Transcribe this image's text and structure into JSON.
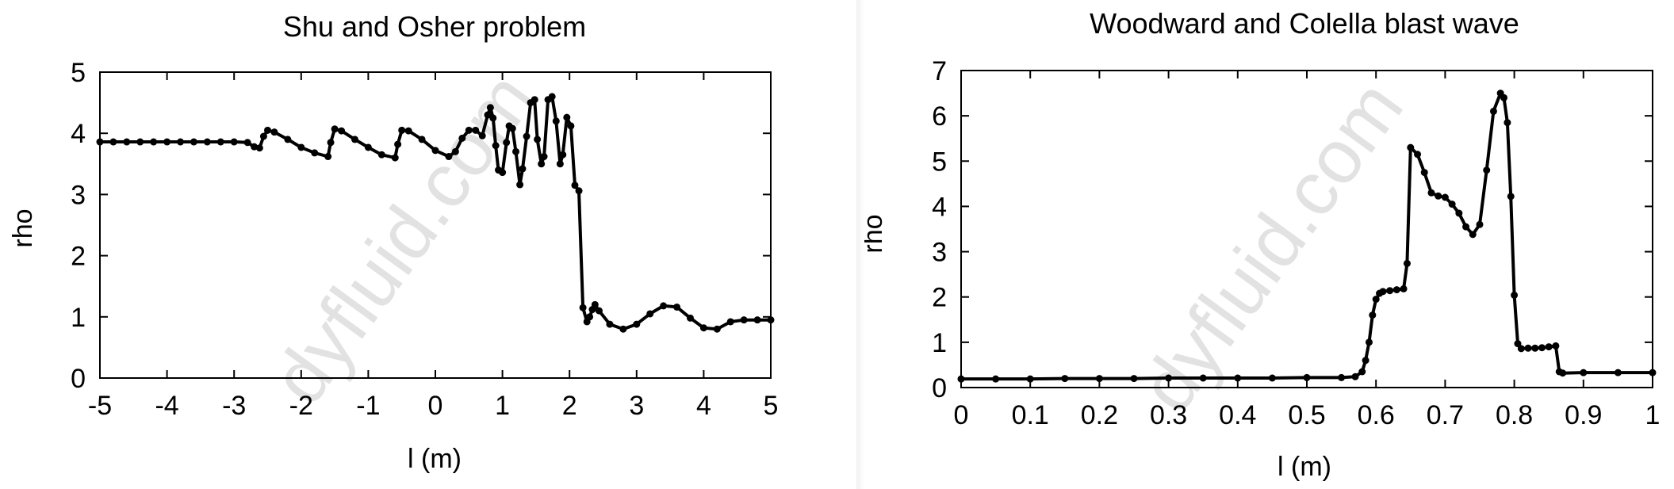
{
  "watermark": "dyfluid.com",
  "chart_data": [
    {
      "type": "line",
      "title": "Shu and Osher problem",
      "xlabel": "l (m)",
      "ylabel": "rho",
      "xlim": [
        -5,
        5
      ],
      "ylim": [
        0,
        5
      ],
      "xticks": [
        "-5",
        "-4",
        "-3",
        "-2",
        "-1",
        "0",
        "1",
        "2",
        "3",
        "4",
        "5"
      ],
      "yticks": [
        "0",
        "1",
        "2",
        "3",
        "4",
        "5"
      ],
      "markers": true,
      "series": [
        {
          "x": [
            -5.0,
            -4.8,
            -4.6,
            -4.4,
            -4.2,
            -4.0,
            -3.8,
            -3.6,
            -3.4,
            -3.2,
            -3.0,
            -2.8,
            -2.7,
            -2.62,
            -2.56,
            -2.5,
            -2.4,
            -2.2,
            -2.0,
            -1.8,
            -1.6,
            -1.56,
            -1.5,
            -1.4,
            -1.2,
            -1.0,
            -0.8,
            -0.6,
            -0.56,
            -0.5,
            -0.4,
            -0.2,
            0.0,
            0.2,
            0.3,
            0.4,
            0.5,
            0.6,
            0.7,
            0.78,
            0.82,
            0.86,
            0.9,
            0.94,
            1.0,
            1.06,
            1.1,
            1.15,
            1.2,
            1.26,
            1.3,
            1.36,
            1.42,
            1.48,
            1.52,
            1.58,
            1.62,
            1.68,
            1.74,
            1.8,
            1.86,
            1.9,
            1.96,
            2.02,
            2.08,
            2.14,
            2.2,
            2.26,
            2.3,
            2.34,
            2.38,
            2.44,
            2.6,
            2.8,
            3.0,
            3.2,
            3.4,
            3.6,
            3.8,
            4.0,
            4.2,
            4.4,
            4.6,
            4.8,
            5.0
          ],
          "y": [
            3.86,
            3.86,
            3.86,
            3.86,
            3.86,
            3.86,
            3.86,
            3.86,
            3.86,
            3.86,
            3.86,
            3.85,
            3.78,
            3.76,
            3.95,
            4.05,
            4.02,
            3.9,
            3.77,
            3.68,
            3.62,
            3.85,
            4.07,
            4.04,
            3.9,
            3.77,
            3.65,
            3.6,
            3.82,
            4.05,
            4.04,
            3.9,
            3.72,
            3.62,
            3.7,
            3.92,
            4.05,
            4.05,
            3.96,
            4.3,
            4.42,
            4.25,
            3.8,
            3.4,
            3.36,
            3.85,
            4.12,
            4.08,
            3.7,
            3.16,
            3.42,
            3.95,
            4.5,
            4.55,
            3.9,
            3.5,
            3.62,
            4.55,
            4.6,
            4.2,
            3.5,
            3.65,
            4.26,
            4.12,
            3.15,
            3.06,
            1.15,
            0.92,
            1.0,
            1.12,
            1.2,
            1.1,
            0.88,
            0.8,
            0.88,
            1.05,
            1.18,
            1.16,
            0.98,
            0.82,
            0.8,
            0.92,
            0.95,
            0.95,
            0.95
          ]
        }
      ]
    },
    {
      "type": "line",
      "title": "Woodward and Colella blast wave",
      "xlabel": "l (m)",
      "ylabel": "rho",
      "xlim": [
        0,
        1
      ],
      "ylim": [
        0,
        7
      ],
      "xticks": [
        "0",
        "0.1",
        "0.2",
        "0.3",
        "0.4",
        "0.5",
        "0.6",
        "0.7",
        "0.8",
        "0.9",
        "1"
      ],
      "yticks": [
        "0",
        "1",
        "2",
        "3",
        "4",
        "5",
        "6",
        "7"
      ],
      "markers": true,
      "series": [
        {
          "x": [
            0.0,
            0.05,
            0.1,
            0.15,
            0.2,
            0.25,
            0.3,
            0.35,
            0.4,
            0.45,
            0.5,
            0.55,
            0.57,
            0.58,
            0.585,
            0.59,
            0.595,
            0.6,
            0.605,
            0.61,
            0.62,
            0.63,
            0.64,
            0.645,
            0.65,
            0.66,
            0.67,
            0.68,
            0.69,
            0.7,
            0.71,
            0.72,
            0.73,
            0.74,
            0.75,
            0.76,
            0.77,
            0.78,
            0.785,
            0.79,
            0.795,
            0.8,
            0.805,
            0.81,
            0.82,
            0.83,
            0.84,
            0.85,
            0.86,
            0.865,
            0.87,
            0.9,
            0.95,
            1.0
          ],
          "y": [
            0.19,
            0.19,
            0.19,
            0.2,
            0.2,
            0.2,
            0.21,
            0.21,
            0.21,
            0.21,
            0.22,
            0.22,
            0.24,
            0.35,
            0.6,
            1.0,
            1.6,
            1.95,
            2.08,
            2.12,
            2.14,
            2.16,
            2.18,
            2.74,
            5.3,
            5.15,
            4.75,
            4.3,
            4.23,
            4.2,
            4.05,
            3.85,
            3.55,
            3.38,
            3.6,
            4.8,
            6.1,
            6.5,
            6.4,
            5.85,
            4.22,
            2.04,
            0.97,
            0.86,
            0.87,
            0.87,
            0.88,
            0.9,
            0.92,
            0.35,
            0.32,
            0.33,
            0.33,
            0.33
          ]
        }
      ]
    }
  ]
}
